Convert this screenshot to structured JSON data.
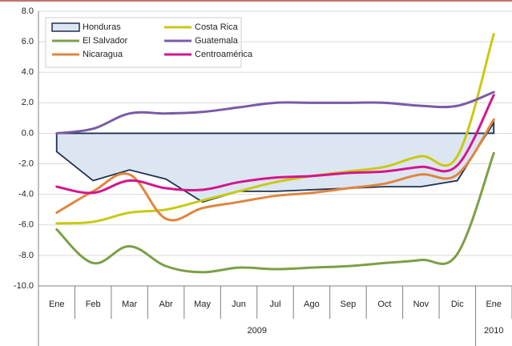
{
  "chart_data": {
    "type": "line",
    "categories": [
      "Ene",
      "Feb",
      "Mar",
      "Abr",
      "May",
      "Jun",
      "Jul",
      "Ago",
      "Sep",
      "Oct",
      "Nov",
      "Dic",
      "Ene"
    ],
    "year_labels": [
      "2009",
      "2010"
    ],
    "ylim": [
      -10,
      8
    ],
    "yticks": [
      {
        "value": -10,
        "label": "-10.0"
      },
      {
        "value": -8,
        "label": "-8.0"
      },
      {
        "value": -6,
        "label": "-6.0"
      },
      {
        "value": -4,
        "label": "-4.0"
      },
      {
        "value": -2,
        "label": "-2.0"
      },
      {
        "value": 0,
        "label": "0.0"
      },
      {
        "value": 2,
        "label": "2.0"
      },
      {
        "value": 4,
        "label": "4.0"
      },
      {
        "value": 6,
        "label": "6.0"
      },
      {
        "value": 8,
        "label": "8.0"
      }
    ],
    "grid": true,
    "series": [
      {
        "name": "Honduras",
        "color": "#1f3050",
        "area": true,
        "fill": "#dce6f2",
        "values": [
          -1.2,
          -3.1,
          -2.4,
          -3.0,
          -4.5,
          -3.8,
          -3.8,
          -3.7,
          -3.6,
          -3.5,
          -3.5,
          -3.1,
          0.7
        ]
      },
      {
        "name": "Costa Rica",
        "color": "#c9c913",
        "values": [
          -5.9,
          -5.8,
          -5.2,
          -5.0,
          -4.4,
          -3.8,
          -3.2,
          -2.8,
          -2.5,
          -2.2,
          -1.5,
          -1.5,
          6.5
        ]
      },
      {
        "name": "El Salvador",
        "color": "#7ba046",
        "values": [
          -6.3,
          -8.5,
          -7.4,
          -8.7,
          -9.1,
          -8.8,
          -8.9,
          -8.8,
          -8.7,
          -8.5,
          -8.3,
          -7.9,
          -1.3
        ]
      },
      {
        "name": "Guatemala",
        "color": "#7b5aa6",
        "values": [
          0.0,
          0.3,
          1.3,
          1.3,
          1.4,
          1.7,
          2.0,
          2.0,
          2.0,
          2.0,
          1.8,
          1.8,
          2.7
        ]
      },
      {
        "name": "Nicaragua",
        "color": "#e0853e",
        "values": [
          -5.2,
          -3.8,
          -2.7,
          -5.6,
          -4.9,
          -4.5,
          -4.1,
          -3.9,
          -3.6,
          -3.3,
          -2.7,
          -2.7,
          0.9
        ]
      },
      {
        "name": "Centroamérica",
        "color": "#d4158d",
        "values": [
          -3.5,
          -3.9,
          -3.1,
          -3.6,
          -3.7,
          -3.2,
          -2.9,
          -2.8,
          -2.6,
          -2.5,
          -2.2,
          -2.1,
          2.5
        ]
      }
    ]
  }
}
